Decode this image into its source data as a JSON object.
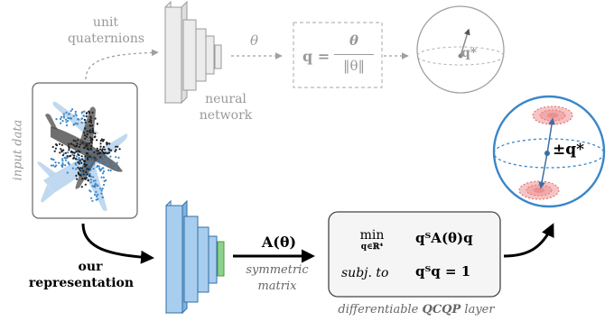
{
  "top_pipeline": {
    "label_line1": "unit",
    "label_line2": "quaternions",
    "theta_symbol": "θ",
    "network_line1": "neural",
    "network_line2": "network",
    "formula_lhs": "q =",
    "formula_num": "θ",
    "formula_den": "‖θ‖",
    "sphere_label": "q*"
  },
  "input": {
    "label": "input data"
  },
  "bottom_pipeline": {
    "ours_line1": "our",
    "ours_line2": "representation",
    "matrix_symbol": "A(θ)",
    "matrix_line1": "symmetric",
    "matrix_line2": "matrix",
    "qcqp_min": "min",
    "qcqp_domain": "q∈ℝ⁴",
    "qcqp_objective": "qᵀA(θ)q",
    "qcqp_subj": "subj. to",
    "qcqp_constraint": "qᵀq = 1",
    "qcqp_caption_pre": "differentiable ",
    "qcqp_caption_bold": "QCQP",
    "qcqp_caption_post": " layer",
    "sphere_label": "±q*"
  },
  "colors": {
    "grey": "#a0a0a0",
    "blue": "#3a86c8",
    "blue_fill": "#a9cdee",
    "green": "#8fd18a",
    "red": "#e06a6a",
    "red_fill": "#f6c4c4"
  }
}
